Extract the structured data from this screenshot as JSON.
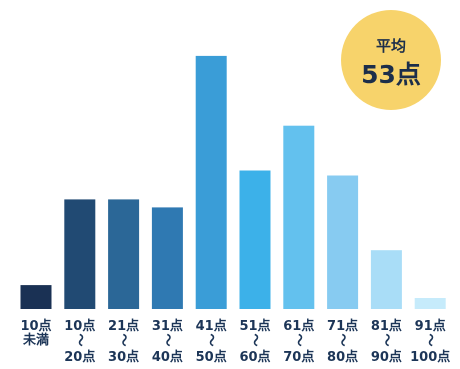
{
  "chart_data": {
    "type": "bar",
    "categories": [
      [
        "10点",
        "未満"
      ],
      [
        "10点",
        "〜",
        "20点"
      ],
      [
        "21点",
        "〜",
        "30点"
      ],
      [
        "31点",
        "〜",
        "40点"
      ],
      [
        "41点",
        "〜",
        "50点"
      ],
      [
        "51点",
        "〜",
        "60点"
      ],
      [
        "61点",
        "〜",
        "70点"
      ],
      [
        "71点",
        "〜",
        "80点"
      ],
      [
        "81点",
        "〜",
        "90点"
      ],
      [
        "91点",
        "〜",
        "100点"
      ]
    ],
    "values": [
      24,
      110,
      110,
      102,
      254,
      139,
      184,
      134,
      59,
      11
    ],
    "ylim": [
      0,
      270
    ],
    "colors": [
      "#1a3154",
      "#214a73",
      "#2b6797",
      "#2f79b2",
      "#3a9dd7",
      "#3cb1e9",
      "#63c1ee",
      "#87cbf1",
      "#a9ddf7",
      "#c6ebfb"
    ],
    "grid": false,
    "legend": "none"
  },
  "badge": {
    "title": "平均",
    "value": "53点",
    "fill": "#f7d36b",
    "text_color": "#1c2e4a"
  }
}
